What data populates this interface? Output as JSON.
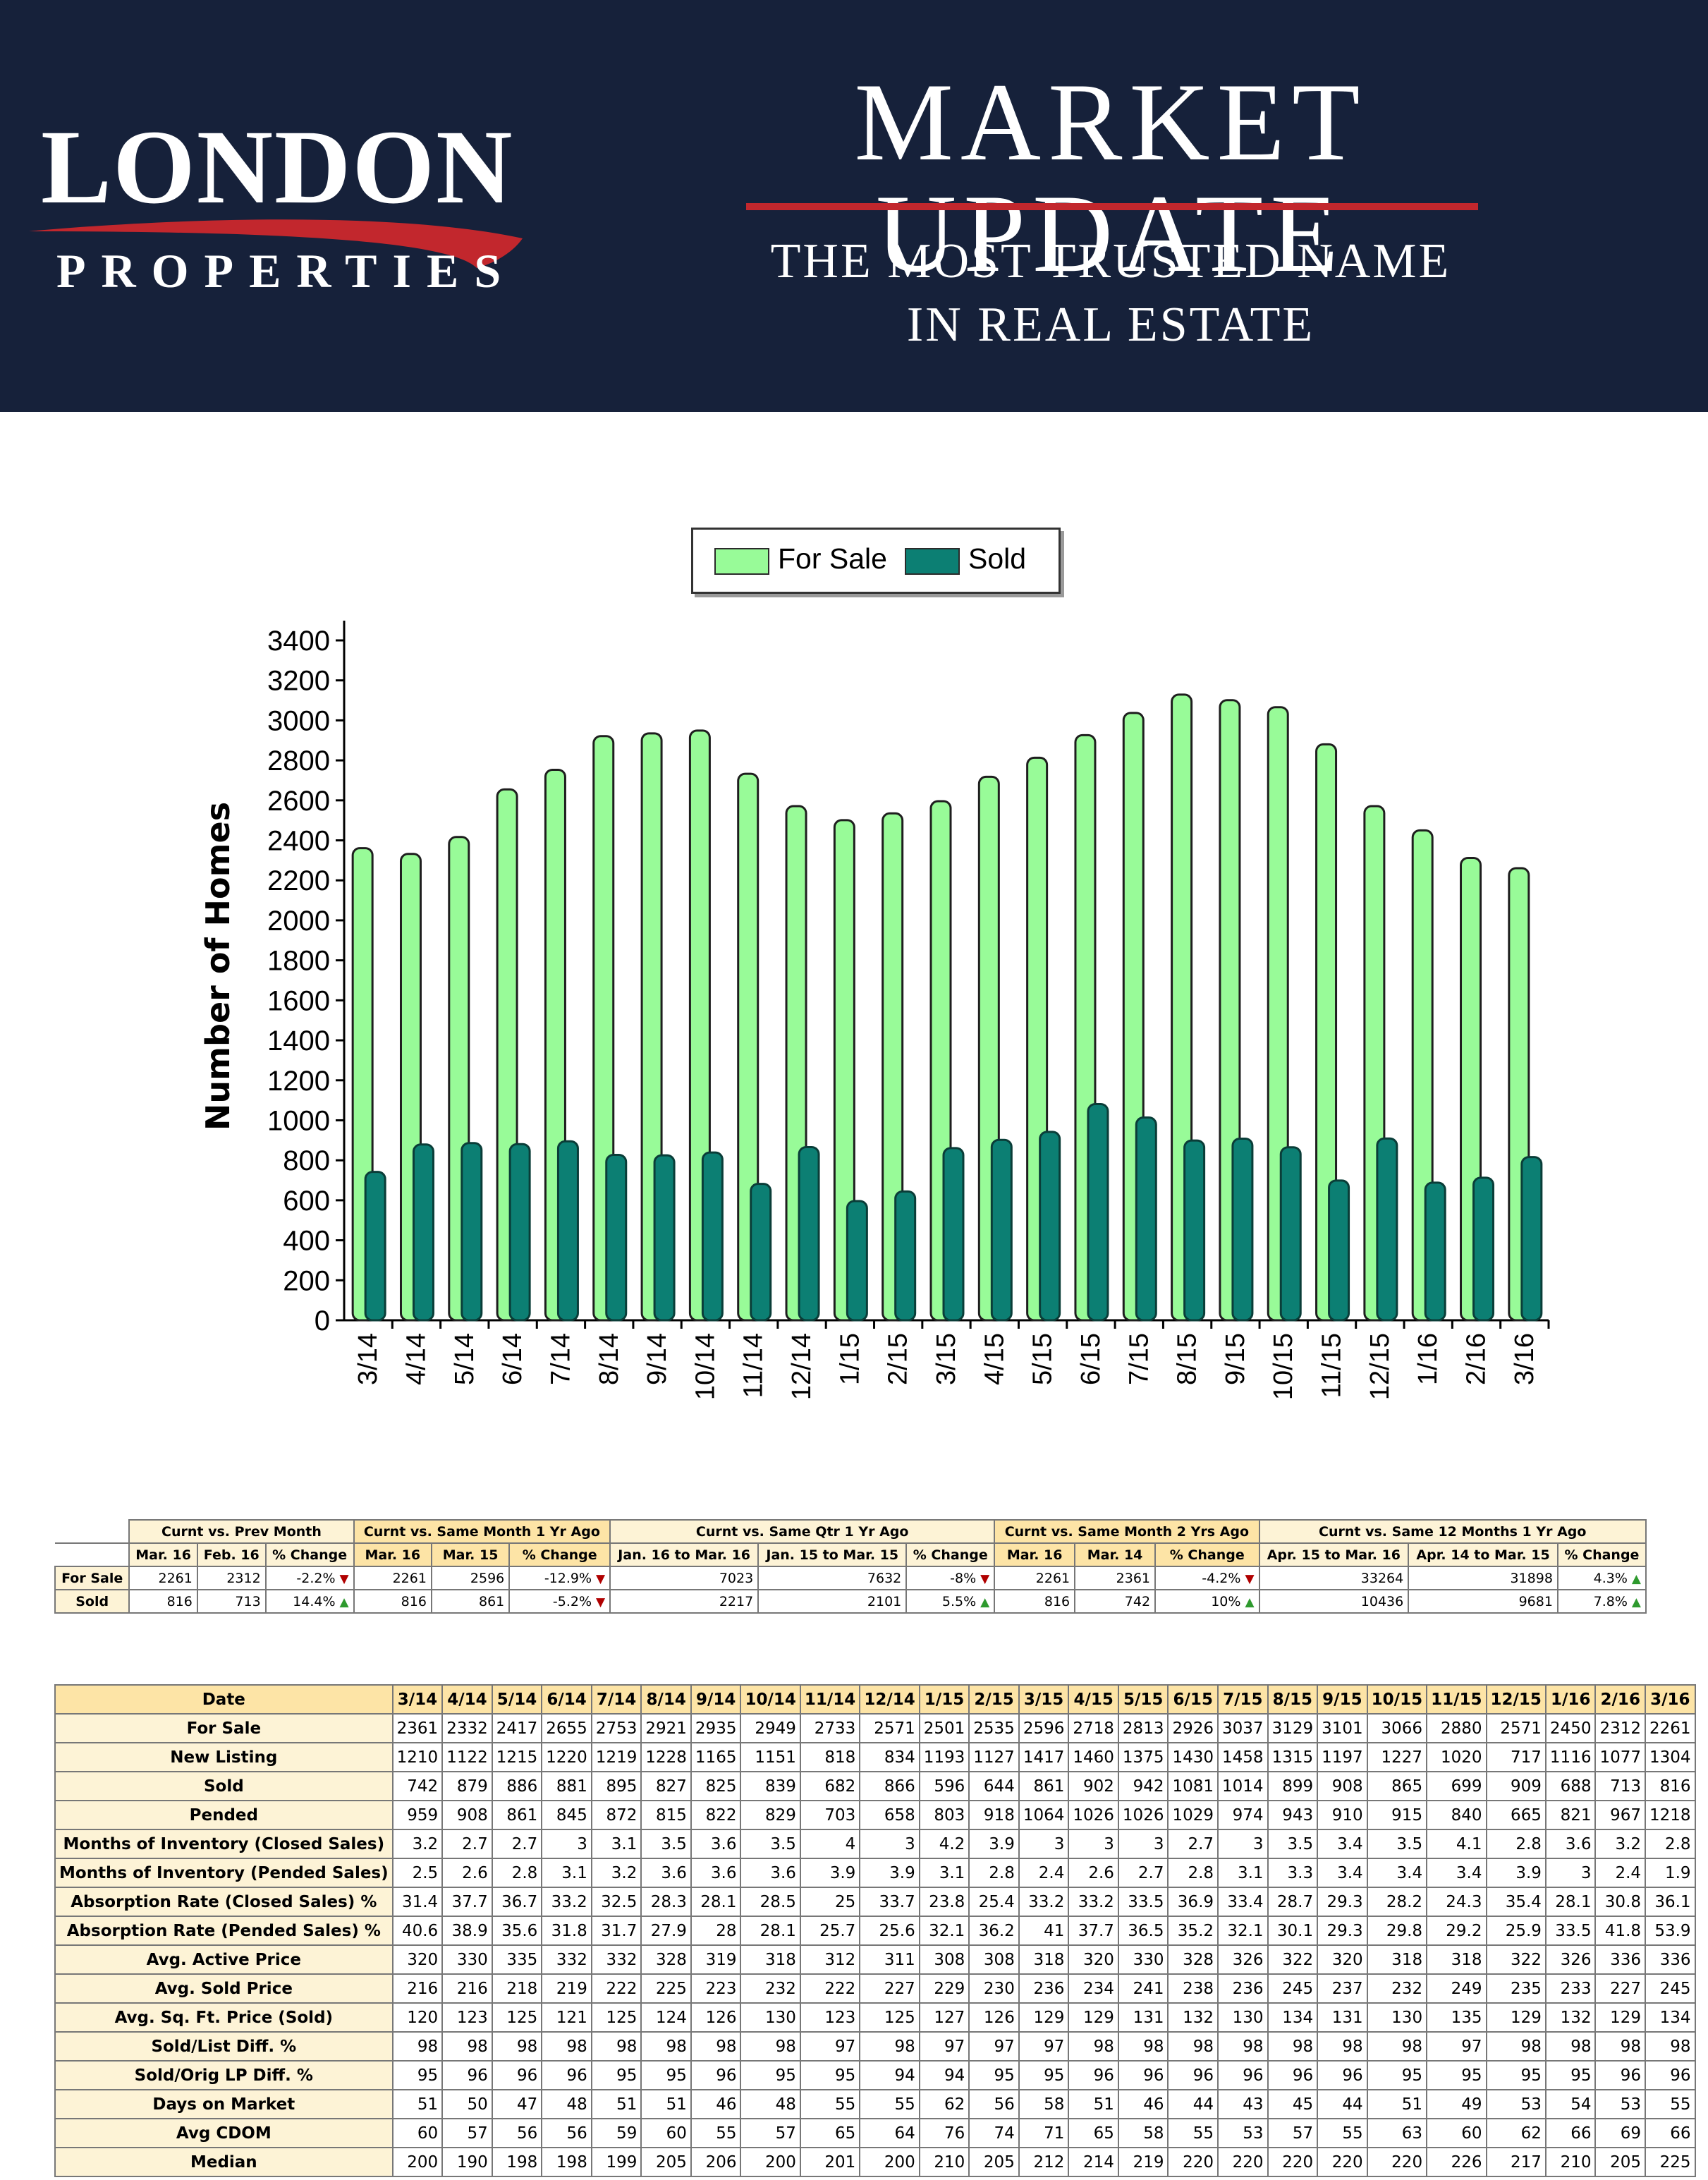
{
  "brand": {
    "logo_main": "LONDON",
    "logo_sub": "PROPERTIES",
    "title": "MARKET UPDATE",
    "tagline_line1": "THE MOST TRUSTED NAME",
    "tagline_line2": "IN REAL ESTATE",
    "accent_color": "#c2272d",
    "header_bg": "#16213a"
  },
  "chart_data": {
    "type": "bar",
    "title": "",
    "xlabel": "",
    "ylabel": "Number of Homes",
    "ylim": [
      0,
      3400
    ],
    "yticks": [
      0,
      200,
      400,
      600,
      800,
      1000,
      1200,
      1400,
      1600,
      1800,
      2000,
      2200,
      2400,
      2600,
      2800,
      3000,
      3200,
      3400
    ],
    "categories": [
      "3/14",
      "4/14",
      "5/14",
      "6/14",
      "7/14",
      "8/14",
      "9/14",
      "10/14",
      "11/14",
      "12/14",
      "1/15",
      "2/15",
      "3/15",
      "4/15",
      "5/15",
      "6/15",
      "7/15",
      "8/15",
      "9/15",
      "10/15",
      "11/15",
      "12/15",
      "1/16",
      "2/16",
      "3/16"
    ],
    "series": [
      {
        "name": "For Sale",
        "color": "#98fb98",
        "values": [
          2361,
          2332,
          2417,
          2655,
          2753,
          2921,
          2935,
          2949,
          2733,
          2571,
          2501,
          2535,
          2596,
          2718,
          2813,
          2926,
          3037,
          3129,
          3101,
          3066,
          2880,
          2571,
          2450,
          2312,
          2261
        ]
      },
      {
        "name": "Sold",
        "color": "#0c7f73",
        "values": [
          742,
          879,
          886,
          881,
          895,
          827,
          825,
          839,
          682,
          866,
          596,
          644,
          861,
          902,
          942,
          1081,
          1014,
          899,
          908,
          865,
          699,
          909,
          688,
          713,
          816
        ]
      }
    ],
    "grid": false,
    "legend_position": "top-center"
  },
  "comparison": {
    "groups": [
      "Curnt vs. Prev Month",
      "Curnt vs. Same Month 1 Yr Ago",
      "Curnt vs. Same Qtr 1 Yr Ago",
      "Curnt vs. Same Month 2 Yrs Ago",
      "Curnt vs. Same 12 Months 1 Yr Ago"
    ],
    "subheaders": [
      "Mar. 16",
      "Feb. 16",
      "% Change",
      "Mar. 16",
      "Mar. 15",
      "% Change",
      "Jan. 16 to Mar. 16",
      "Jan. 15 to Mar. 15",
      "% Change",
      "Mar. 16",
      "Mar. 14",
      "% Change",
      "Apr. 15 to Mar. 16",
      "Apr. 14 to Mar. 15",
      "% Change"
    ],
    "rows": [
      {
        "label": "For Sale",
        "cells": [
          "2261",
          "2312",
          "-2.2%",
          "2261",
          "2596",
          "-12.9%",
          "7023",
          "7632",
          "-8%",
          "2261",
          "2361",
          "-4.2%",
          "33264",
          "31898",
          "4.3%"
        ],
        "dirs": [
          "down",
          "down",
          "down",
          "down",
          "up"
        ]
      },
      {
        "label": "Sold",
        "cells": [
          "816",
          "713",
          "14.4%",
          "816",
          "861",
          "-5.2%",
          "2217",
          "2101",
          "5.5%",
          "816",
          "742",
          "10%",
          "10436",
          "9681",
          "7.8%"
        ],
        "dirs": [
          "up",
          "down",
          "up",
          "up",
          "up"
        ]
      }
    ],
    "up_color": "#2e9a2e",
    "down_color": "#b00000"
  },
  "stats": {
    "date_label": "Date",
    "dates": [
      "3/14",
      "4/14",
      "5/14",
      "6/14",
      "7/14",
      "8/14",
      "9/14",
      "10/14",
      "11/14",
      "12/14",
      "1/15",
      "2/15",
      "3/15",
      "4/15",
      "5/15",
      "6/15",
      "7/15",
      "8/15",
      "9/15",
      "10/15",
      "11/15",
      "12/15",
      "1/16",
      "2/16",
      "3/16"
    ],
    "rows": [
      {
        "label": "For Sale",
        "values": [
          "2361",
          "2332",
          "2417",
          "2655",
          "2753",
          "2921",
          "2935",
          "2949",
          "2733",
          "2571",
          "2501",
          "2535",
          "2596",
          "2718",
          "2813",
          "2926",
          "3037",
          "3129",
          "3101",
          "3066",
          "2880",
          "2571",
          "2450",
          "2312",
          "2261"
        ]
      },
      {
        "label": "New Listing",
        "values": [
          "1210",
          "1122",
          "1215",
          "1220",
          "1219",
          "1228",
          "1165",
          "1151",
          "818",
          "834",
          "1193",
          "1127",
          "1417",
          "1460",
          "1375",
          "1430",
          "1458",
          "1315",
          "1197",
          "1227",
          "1020",
          "717",
          "1116",
          "1077",
          "1304"
        ]
      },
      {
        "label": "Sold",
        "values": [
          "742",
          "879",
          "886",
          "881",
          "895",
          "827",
          "825",
          "839",
          "682",
          "866",
          "596",
          "644",
          "861",
          "902",
          "942",
          "1081",
          "1014",
          "899",
          "908",
          "865",
          "699",
          "909",
          "688",
          "713",
          "816"
        ]
      },
      {
        "label": "Pended",
        "values": [
          "959",
          "908",
          "861",
          "845",
          "872",
          "815",
          "822",
          "829",
          "703",
          "658",
          "803",
          "918",
          "1064",
          "1026",
          "1026",
          "1029",
          "974",
          "943",
          "910",
          "915",
          "840",
          "665",
          "821",
          "967",
          "1218"
        ]
      },
      {
        "label": "Months of Inventory (Closed Sales)",
        "values": [
          "3.2",
          "2.7",
          "2.7",
          "3",
          "3.1",
          "3.5",
          "3.6",
          "3.5",
          "4",
          "3",
          "4.2",
          "3.9",
          "3",
          "3",
          "3",
          "2.7",
          "3",
          "3.5",
          "3.4",
          "3.5",
          "4.1",
          "2.8",
          "3.6",
          "3.2",
          "2.8"
        ]
      },
      {
        "label": "Months of Inventory (Pended Sales)",
        "values": [
          "2.5",
          "2.6",
          "2.8",
          "3.1",
          "3.2",
          "3.6",
          "3.6",
          "3.6",
          "3.9",
          "3.9",
          "3.1",
          "2.8",
          "2.4",
          "2.6",
          "2.7",
          "2.8",
          "3.1",
          "3.3",
          "3.4",
          "3.4",
          "3.4",
          "3.9",
          "3",
          "2.4",
          "1.9"
        ]
      },
      {
        "label": "Absorption Rate (Closed Sales) %",
        "values": [
          "31.4",
          "37.7",
          "36.7",
          "33.2",
          "32.5",
          "28.3",
          "28.1",
          "28.5",
          "25",
          "33.7",
          "23.8",
          "25.4",
          "33.2",
          "33.2",
          "33.5",
          "36.9",
          "33.4",
          "28.7",
          "29.3",
          "28.2",
          "24.3",
          "35.4",
          "28.1",
          "30.8",
          "36.1"
        ]
      },
      {
        "label": "Absorption Rate (Pended Sales) %",
        "values": [
          "40.6",
          "38.9",
          "35.6",
          "31.8",
          "31.7",
          "27.9",
          "28",
          "28.1",
          "25.7",
          "25.6",
          "32.1",
          "36.2",
          "41",
          "37.7",
          "36.5",
          "35.2",
          "32.1",
          "30.1",
          "29.3",
          "29.8",
          "29.2",
          "25.9",
          "33.5",
          "41.8",
          "53.9"
        ]
      },
      {
        "label": "Avg. Active Price",
        "values": [
          "320",
          "330",
          "335",
          "332",
          "332",
          "328",
          "319",
          "318",
          "312",
          "311",
          "308",
          "308",
          "318",
          "320",
          "330",
          "328",
          "326",
          "322",
          "320",
          "318",
          "318",
          "322",
          "326",
          "336",
          "336"
        ]
      },
      {
        "label": "Avg. Sold Price",
        "values": [
          "216",
          "216",
          "218",
          "219",
          "222",
          "225",
          "223",
          "232",
          "222",
          "227",
          "229",
          "230",
          "236",
          "234",
          "241",
          "238",
          "236",
          "245",
          "237",
          "232",
          "249",
          "235",
          "233",
          "227",
          "245"
        ]
      },
      {
        "label": "Avg. Sq. Ft. Price (Sold)",
        "values": [
          "120",
          "123",
          "125",
          "121",
          "125",
          "124",
          "126",
          "130",
          "123",
          "125",
          "127",
          "126",
          "129",
          "129",
          "131",
          "132",
          "130",
          "134",
          "131",
          "130",
          "135",
          "129",
          "132",
          "129",
          "134"
        ]
      },
      {
        "label": "Sold/List Diff. %",
        "values": [
          "98",
          "98",
          "98",
          "98",
          "98",
          "98",
          "98",
          "98",
          "97",
          "98",
          "97",
          "97",
          "97",
          "98",
          "98",
          "98",
          "98",
          "98",
          "98",
          "98",
          "97",
          "98",
          "98",
          "98",
          "98"
        ]
      },
      {
        "label": "Sold/Orig LP Diff. %",
        "values": [
          "95",
          "96",
          "96",
          "96",
          "95",
          "95",
          "96",
          "95",
          "95",
          "94",
          "94",
          "95",
          "95",
          "96",
          "96",
          "96",
          "96",
          "96",
          "96",
          "95",
          "95",
          "95",
          "95",
          "96",
          "96"
        ]
      },
      {
        "label": "Days on Market",
        "values": [
          "51",
          "50",
          "47",
          "48",
          "51",
          "51",
          "46",
          "48",
          "55",
          "55",
          "62",
          "56",
          "58",
          "51",
          "46",
          "44",
          "43",
          "45",
          "44",
          "51",
          "49",
          "53",
          "54",
          "53",
          "55"
        ]
      },
      {
        "label": "Avg CDOM",
        "values": [
          "60",
          "57",
          "56",
          "56",
          "59",
          "60",
          "55",
          "57",
          "65",
          "64",
          "76",
          "74",
          "71",
          "65",
          "58",
          "55",
          "53",
          "57",
          "55",
          "63",
          "60",
          "62",
          "66",
          "69",
          "66"
        ]
      },
      {
        "label": "Median",
        "values": [
          "200",
          "190",
          "198",
          "198",
          "199",
          "205",
          "206",
          "200",
          "201",
          "200",
          "210",
          "205",
          "212",
          "214",
          "219",
          "220",
          "220",
          "220",
          "220",
          "220",
          "226",
          "217",
          "210",
          "205",
          "225"
        ]
      }
    ]
  }
}
